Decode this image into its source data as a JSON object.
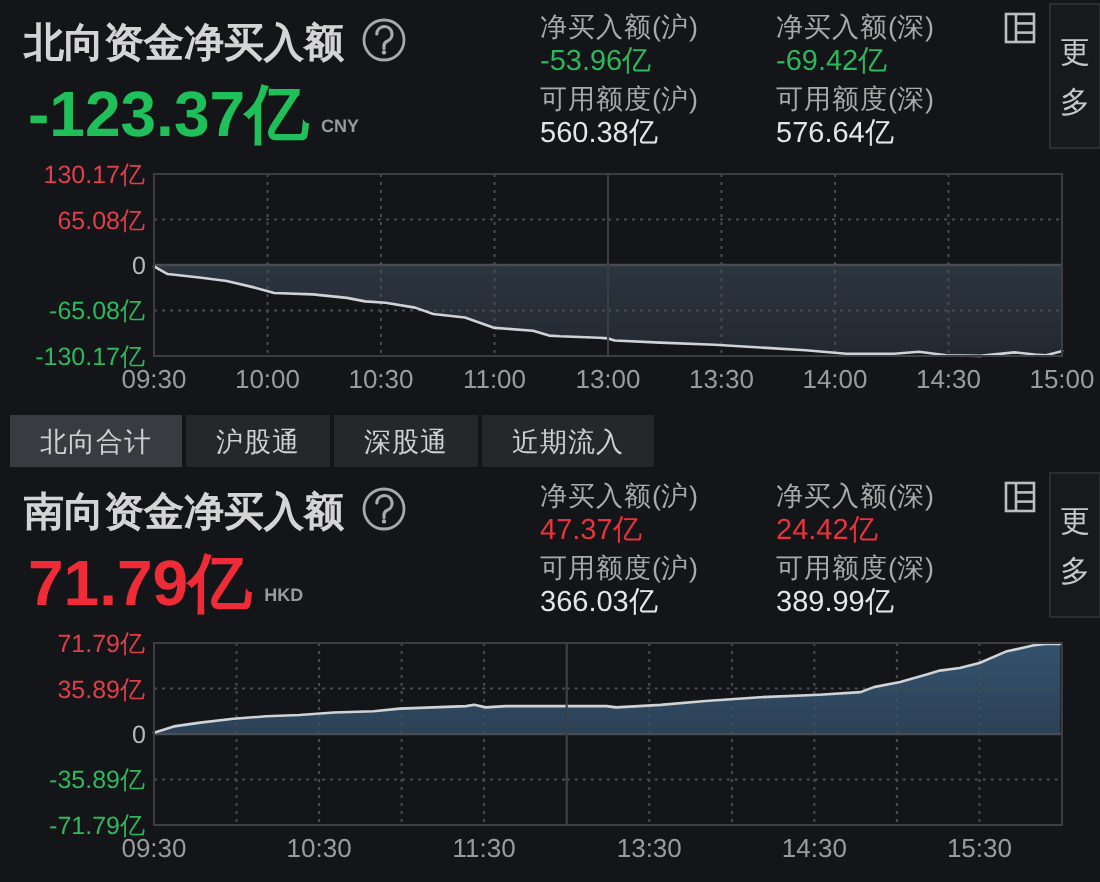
{
  "chart_data": [
    {
      "type": "other",
      "title": "北向资金净买入额",
      "categories": [
        null,
        "净买入额(沪)",
        "净买入额(深)",
        "可用额度(沪)",
        "可用额度(深)"
      ],
      "value_labels": [
        "-123.37亿",
        "-53.96亿",
        "-69.42亿",
        "560.38亿",
        "576.64亿"
      ],
      "colors": [
        "#1fc05a",
        "#2bb85c",
        "#2bb85c",
        "#e6e6e6",
        "#e6e6e6"
      ],
      "annotations": [
        "CNY",
        "更多"
      ]
    },
    {
      "type": "area",
      "x": [
        9.5,
        9.56,
        9.7,
        9.82,
        9.94,
        10.03,
        10.2,
        10.35,
        10.43,
        10.52,
        10.65,
        10.73,
        10.87,
        11,
        11.17,
        11.24,
        11.29,
        11.46,
        11.5
      ],
      "series": [
        {
          "color": "#34414f",
          "values": [
            -2,
            -13,
            -18,
            -23,
            -32,
            -40,
            -42,
            -47,
            -52,
            -54,
            -61,
            -70,
            -75,
            -90,
            -94,
            -101,
            -102,
            -104,
            -105
          ]
        }
      ],
      "xlim": [
        9.5,
        11.5
      ],
      "xticks": [
        {
          "value": 9.5,
          "label": "09:30"
        },
        {
          "value": 10,
          "label": "10:00"
        },
        {
          "value": 10.5,
          "label": "10:30"
        },
        {
          "value": 11,
          "label": "11:00"
        }
      ],
      "ylim": [
        -130.17,
        130.17
      ],
      "yticks": [
        {
          "value": -130.17,
          "label": "-130.17亿"
        },
        {
          "value": -65.08,
          "label": "-65.08亿"
        },
        0,
        {
          "value": 65.08,
          "label": "65.08亿"
        },
        {
          "value": 130.17,
          "label": "130.17亿"
        }
      ],
      "grid": true,
      "marker": "none",
      "line_style": "solid"
    },
    {
      "type": "area",
      "x": [
        13,
        13.03,
        13.23,
        13.47,
        13.67,
        13.87,
        14.05,
        14.26,
        14.37,
        14.49,
        14.64,
        14.79,
        14.88,
        14.93,
        14.99,
        15
      ],
      "series": [
        {
          "color": "#34414f",
          "values": [
            -105,
            -108,
            -111,
            -114,
            -118,
            -122,
            -127,
            -127,
            -124,
            -129,
            -130,
            -125,
            -128,
            -129,
            -124,
            -123
          ]
        }
      ],
      "xlim": [
        13,
        15
      ],
      "xticks": [
        {
          "value": 13,
          "label": "13:00"
        },
        {
          "value": 13.5,
          "label": "13:30"
        },
        {
          "value": 14,
          "label": "14:00"
        },
        {
          "value": 14.5,
          "label": "14:30"
        },
        {
          "value": 15,
          "label": "15:00"
        }
      ],
      "ylim": [
        -130.17,
        130.17
      ],
      "yticks": [
        {
          "value": -130.17,
          "label": null
        },
        {
          "value": -65.08,
          "label": null
        },
        {
          "value": 0,
          "label": null
        },
        {
          "value": 65.08,
          "label": null
        },
        {
          "value": 130.17,
          "label": null
        }
      ],
      "tick_labels": "x",
      "grid": true,
      "marker": "none",
      "line_style": "solid"
    },
    {
      "type": "other",
      "annotations": [
        "北向合计",
        "沪股通",
        "深股通",
        "近期流入"
      ]
    },
    {
      "type": "other",
      "title": "南向资金净买入额",
      "categories": [
        null,
        "净买入额(沪)",
        "净买入额(深)",
        "可用额度(沪)",
        "可用额度(深)"
      ],
      "value_labels": [
        "71.79亿",
        "47.37亿",
        "24.42亿",
        "366.03亿",
        "389.99亿"
      ],
      "colors": [
        "#ee2b36",
        "#e8333d",
        "#e8333d",
        "#e6e6e6",
        "#e6e6e6"
      ],
      "annotations": [
        "HKD",
        "更多"
      ]
    },
    {
      "type": "area",
      "x": [
        9.5,
        9.62,
        9.78,
        9.98,
        10.18,
        10.38,
        10.59,
        10.83,
        10.99,
        11.39,
        11.44,
        11.51,
        11.63,
        11.96,
        12
      ],
      "series": [
        {
          "color": "#34526d",
          "values": [
            1,
            6,
            9,
            12,
            14,
            15,
            17,
            18,
            20,
            22,
            23,
            21,
            22,
            22,
            22
          ]
        }
      ],
      "xlim": [
        9.5,
        12
      ],
      "xticks": [
        {
          "value": 9.5,
          "label": "09:30"
        },
        {
          "value": 10,
          "label": null
        },
        {
          "value": 10.5,
          "label": "10:30"
        },
        {
          "value": 11,
          "label": null
        },
        {
          "value": 11.5,
          "label": "11:30"
        }
      ],
      "ylim": [
        -71.79,
        71.79
      ],
      "yticks": [
        {
          "value": -71.79,
          "label": "-71.79亿"
        },
        {
          "value": -35.89,
          "label": "-35.89亿"
        },
        0,
        {
          "value": 35.89,
          "label": "35.89亿"
        },
        {
          "value": 71.79,
          "label": "71.79亿"
        }
      ],
      "grid": true,
      "marker": "none",
      "line_style": "solid"
    },
    {
      "type": "area",
      "x": [
        13,
        13.24,
        13.3,
        13.57,
        13.84,
        14.17,
        14.53,
        14.78,
        14.86,
        15.02,
        15.18,
        15.26,
        15.38,
        15.5,
        15.66,
        15.83,
        15.9,
        15.99
      ],
      "series": [
        {
          "color": "#34526d",
          "values": [
            22,
            22,
            21,
            23,
            26,
            29,
            31,
            33,
            37,
            41,
            47,
            50,
            52,
            56,
            65,
            70,
            71,
            71
          ]
        }
      ],
      "xlim": [
        13,
        16
      ],
      "xticks": [
        {
          "value": 13.5,
          "label": "13:30"
        },
        {
          "value": 14,
          "label": null
        },
        {
          "value": 14.5,
          "label": "14:30"
        },
        {
          "value": 15,
          "label": null
        },
        {
          "value": 15.5,
          "label": "15:30"
        }
      ],
      "ylim": [
        -71.79,
        71.79
      ],
      "yticks": [
        {
          "value": -71.79,
          "label": null
        },
        {
          "value": -35.89,
          "label": null
        },
        {
          "value": 0,
          "label": null
        },
        {
          "value": 35.89,
          "label": null
        },
        {
          "value": 71.79,
          "label": null
        }
      ],
      "tick_labels": "x",
      "grid": true,
      "marker": "none",
      "line_style": "solid"
    }
  ]
}
